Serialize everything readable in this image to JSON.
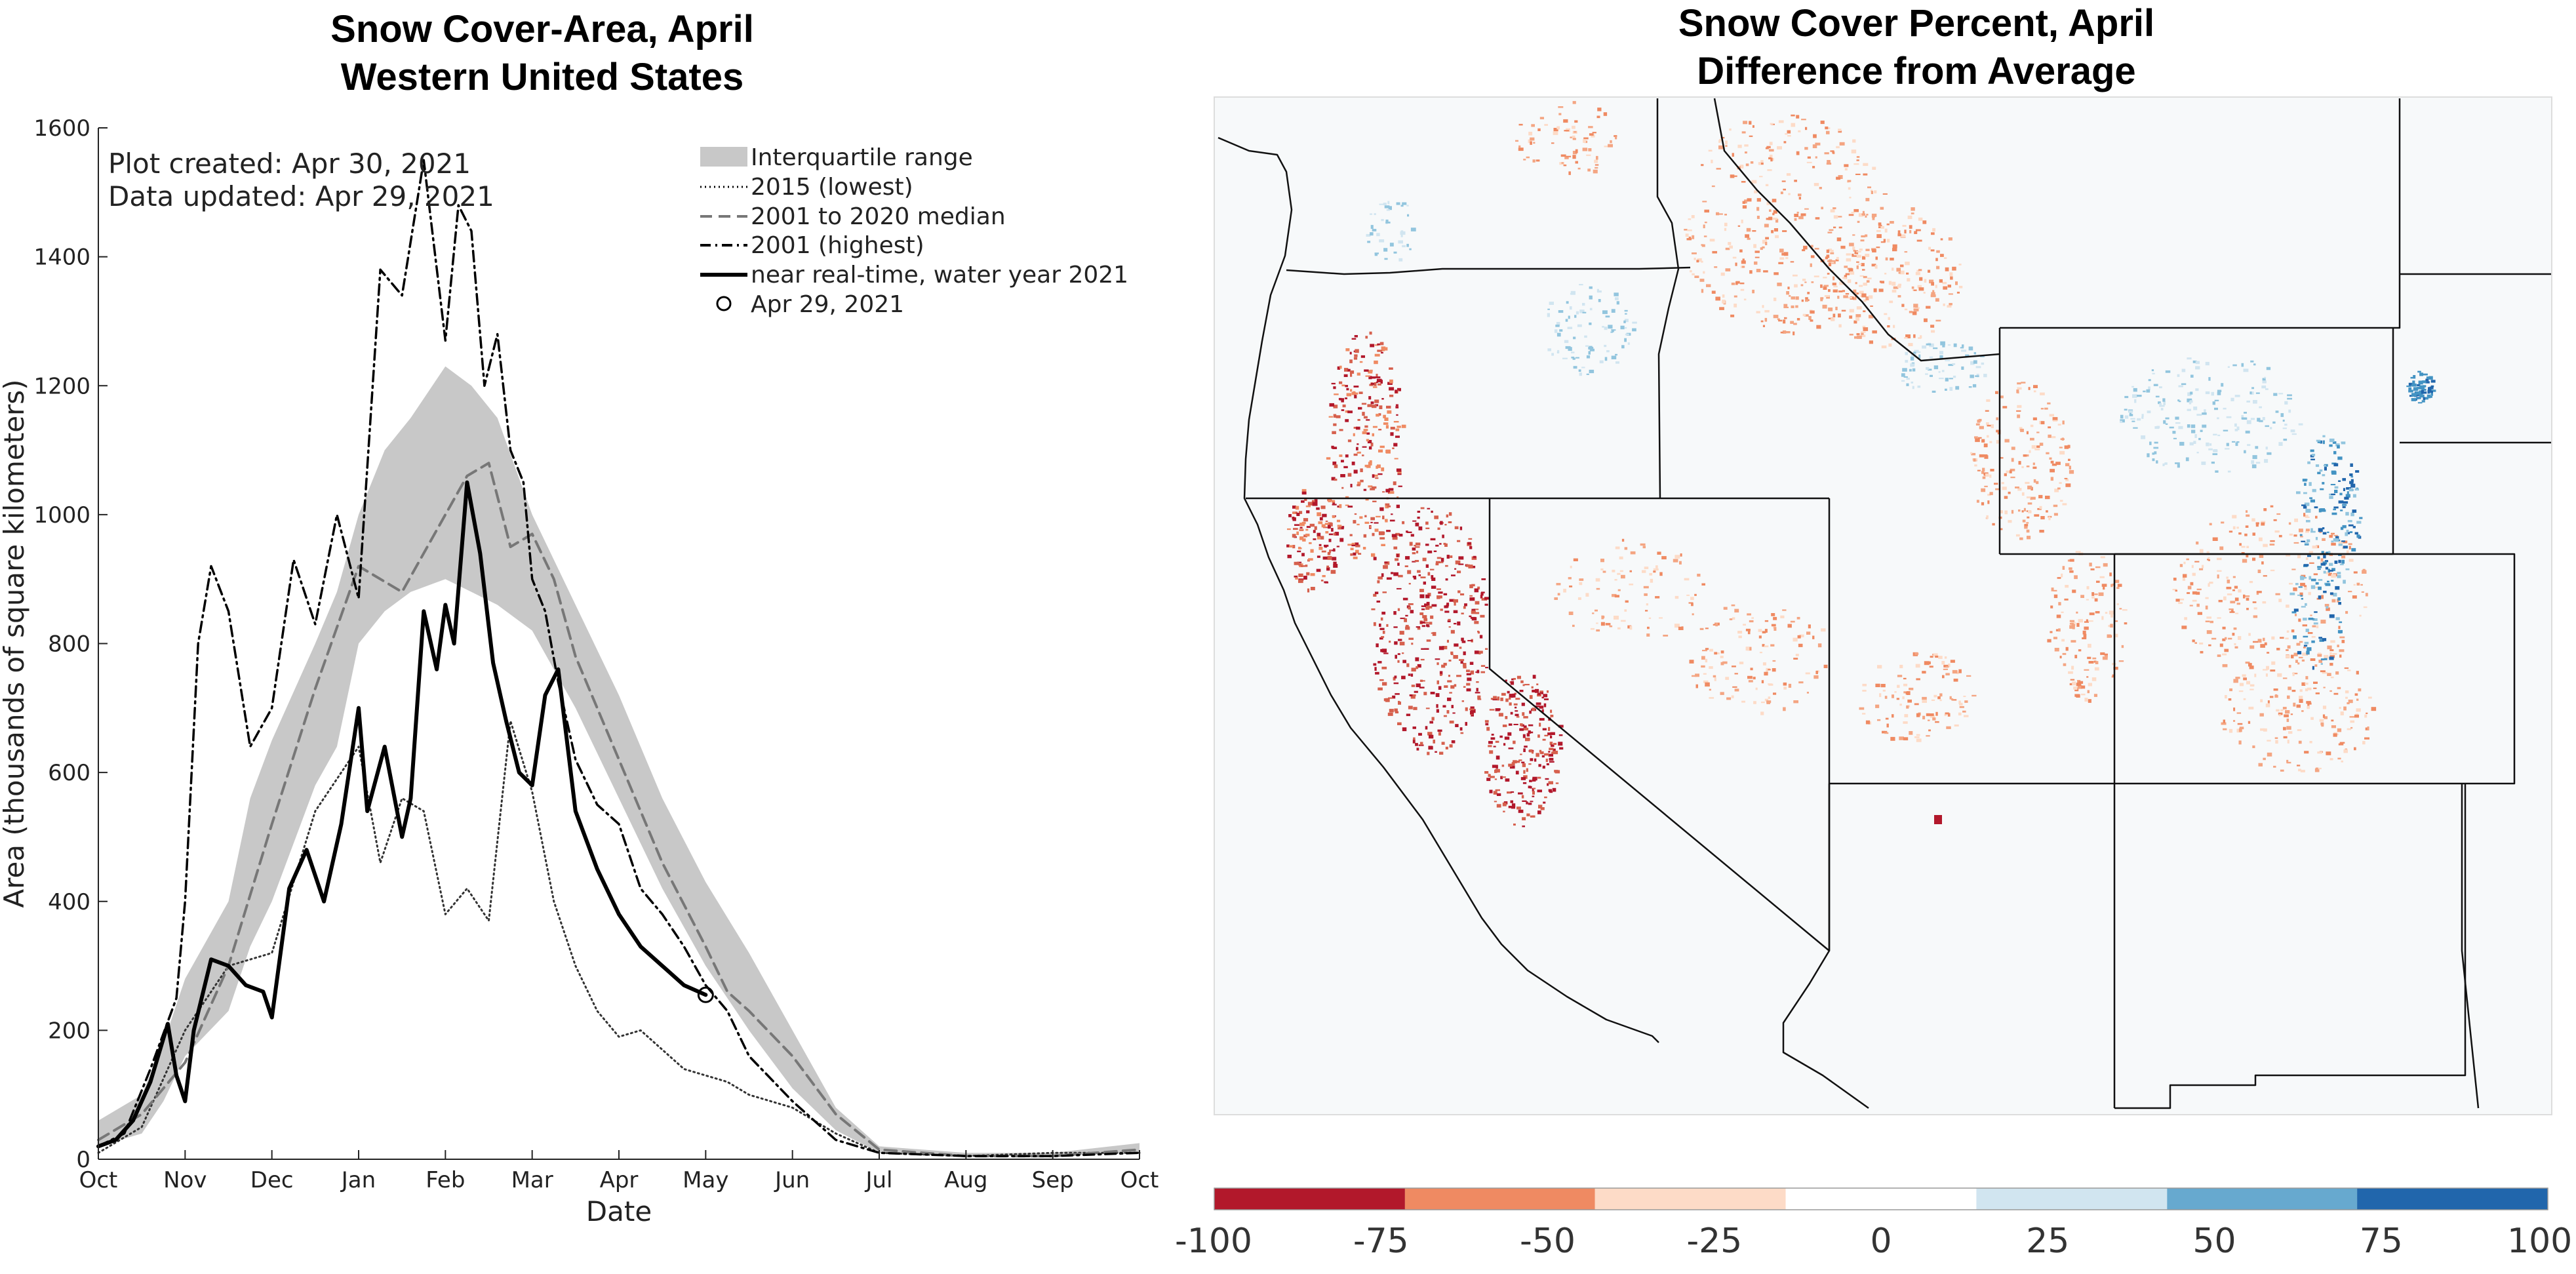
{
  "chart_data": [
    {
      "type": "line",
      "title_line1": "Snow Cover-Area, April",
      "title_line2": "Western United States",
      "xlabel": "Date",
      "ylabel": "Area (thousands of square kilometers)",
      "ylim": [
        0,
        1600
      ],
      "yticks": [
        0,
        200,
        400,
        600,
        800,
        1000,
        1200,
        1400,
        1600
      ],
      "xlim": [
        0,
        12
      ],
      "xtick_labels": [
        "Oct",
        "Nov",
        "Dec",
        "Jan",
        "Feb",
        "Mar",
        "Apr",
        "May",
        "Jun",
        "Jul",
        "Aug",
        "Sep",
        "Oct"
      ],
      "annotation_line1": "Plot created: Apr 30, 2021",
      "annotation_line2": "Data updated: Apr 29, 2021",
      "legend_position": "top-right",
      "legend": {
        "iqr": "Interquartile range",
        "lowest": "2015 (lowest)",
        "median": "2001 to 2020 median",
        "highest": "2001 (highest)",
        "current": "near real-time, water year 2021",
        "marker": "Apr 29, 2021"
      },
      "colors": {
        "iqr": "#c8c8c8",
        "lines": "#000000"
      },
      "x_unit": "months since Oct 1",
      "series": [
        {
          "name": "Interquartile range",
          "kind": "band",
          "x": [
            0,
            0.5,
            0.75,
            1,
            1.5,
            1.75,
            2,
            2.5,
            2.75,
            3,
            3.3,
            3.6,
            4,
            4.3,
            4.6,
            5,
            5.5,
            6,
            6.5,
            7,
            7.5,
            8,
            8.5,
            9,
            10,
            11,
            12
          ],
          "low": [
            20,
            40,
            90,
            160,
            230,
            330,
            400,
            580,
            640,
            800,
            850,
            880,
            900,
            880,
            860,
            820,
            700,
            560,
            420,
            300,
            200,
            110,
            45,
            10,
            5,
            5,
            10
          ],
          "high": [
            60,
            100,
            180,
            280,
            400,
            560,
            650,
            800,
            880,
            1000,
            1100,
            1150,
            1230,
            1200,
            1150,
            1000,
            860,
            720,
            560,
            430,
            320,
            200,
            80,
            20,
            10,
            10,
            25
          ]
        },
        {
          "name": "2015 (lowest)",
          "kind": "dotted",
          "x": [
            0,
            0.5,
            1,
            1.5,
            2,
            2.5,
            3,
            3.25,
            3.5,
            3.75,
            4,
            4.25,
            4.5,
            4.75,
            5,
            5.25,
            5.5,
            5.75,
            6,
            6.25,
            6.5,
            6.75,
            7,
            7.25,
            7.5,
            8,
            8.5,
            9,
            10,
            11,
            12
          ],
          "y": [
            10,
            50,
            200,
            300,
            320,
            540,
            640,
            460,
            560,
            540,
            380,
            420,
            370,
            680,
            570,
            400,
            300,
            230,
            190,
            200,
            170,
            140,
            130,
            120,
            100,
            80,
            40,
            10,
            5,
            10,
            10
          ]
        },
        {
          "name": "2001 to 2020 median",
          "kind": "dashed",
          "x": [
            0,
            0.5,
            1,
            1.5,
            2,
            2.5,
            3,
            3.5,
            4,
            4.25,
            4.5,
            4.75,
            5,
            5.25,
            5.5,
            6,
            6.5,
            7,
            7.25,
            7.5,
            8,
            8.5,
            9,
            10,
            11,
            12
          ],
          "y": [
            30,
            70,
            150,
            300,
            520,
            730,
            920,
            880,
            1000,
            1060,
            1080,
            950,
            970,
            900,
            780,
            620,
            460,
            330,
            260,
            230,
            160,
            70,
            15,
            5,
            5,
            15
          ]
        },
        {
          "name": "2001 (highest)",
          "kind": "dashdot",
          "x": [
            0,
            0.3,
            0.6,
            0.9,
            1,
            1.15,
            1.3,
            1.5,
            1.75,
            2,
            2.25,
            2.5,
            2.75,
            3,
            3.25,
            3.5,
            3.75,
            4,
            4.15,
            4.3,
            4.45,
            4.6,
            4.75,
            4.9,
            5,
            5.15,
            5.3,
            5.5,
            5.75,
            6,
            6.25,
            6.5,
            6.75,
            7,
            7.25,
            7.5,
            8,
            8.5,
            9,
            10,
            11,
            12
          ],
          "y": [
            20,
            40,
            140,
            250,
            400,
            800,
            920,
            850,
            640,
            700,
            930,
            830,
            1000,
            870,
            1380,
            1340,
            1550,
            1270,
            1480,
            1440,
            1200,
            1280,
            1100,
            1050,
            900,
            850,
            740,
            620,
            550,
            520,
            420,
            380,
            330,
            270,
            230,
            160,
            90,
            30,
            10,
            5,
            5,
            10
          ]
        },
        {
          "name": "near real-time, water year 2021",
          "kind": "solid",
          "x": [
            0,
            0.2,
            0.4,
            0.6,
            0.8,
            0.9,
            1.0,
            1.1,
            1.3,
            1.5,
            1.7,
            1.9,
            2.0,
            2.2,
            2.4,
            2.6,
            2.8,
            3.0,
            3.1,
            3.3,
            3.5,
            3.6,
            3.75,
            3.9,
            4.0,
            4.1,
            4.25,
            4.4,
            4.55,
            4.7,
            4.85,
            5.0,
            5.15,
            5.3,
            5.5,
            5.75,
            6.0,
            6.25,
            6.5,
            6.75,
            7.0
          ],
          "y": [
            20,
            30,
            60,
            120,
            210,
            130,
            90,
            200,
            310,
            300,
            270,
            260,
            220,
            420,
            480,
            400,
            520,
            700,
            540,
            640,
            500,
            560,
            850,
            760,
            860,
            800,
            1050,
            940,
            770,
            680,
            600,
            580,
            720,
            760,
            540,
            450,
            380,
            330,
            300,
            270,
            255
          ]
        }
      ],
      "marker_point": {
        "x": 7.0,
        "y": 255
      }
    },
    {
      "type": "heatmap",
      "title_line1": "Snow Cover Percent, April",
      "title_line2": "Difference from Average",
      "colorbar": {
        "tick_labels": [
          "-100",
          "-75",
          "-50",
          "-25",
          "0",
          "25",
          "50",
          "75",
          "100"
        ],
        "range": [
          -100,
          100
        ],
        "colors": [
          "#b2182b",
          "#ef8a62",
          "#fddbc7",
          "#ffffff",
          "#d1e5f0",
          "#67a9cf",
          "#2166ac"
        ]
      },
      "map_background": "#f7f9fa"
    }
  ]
}
